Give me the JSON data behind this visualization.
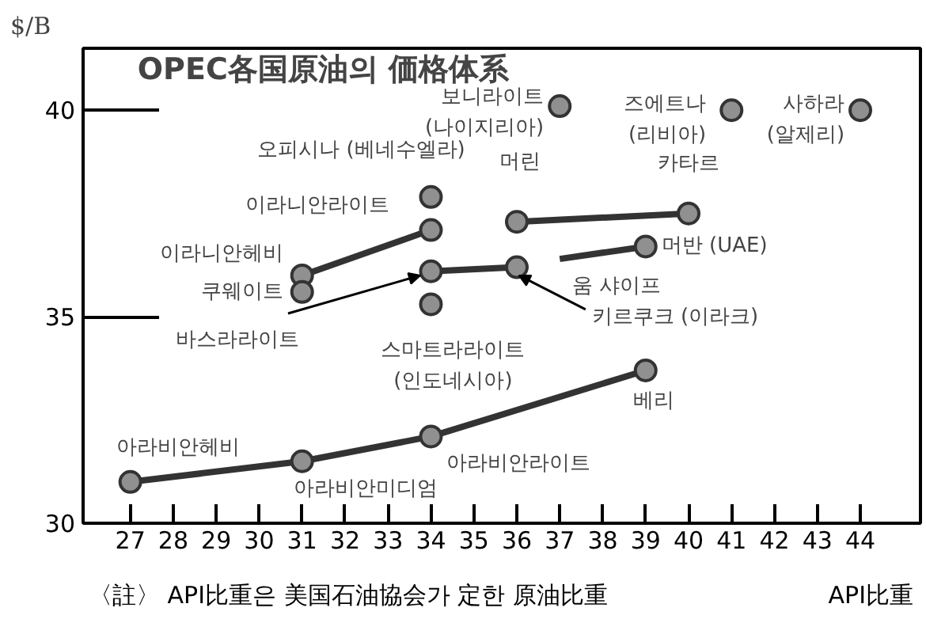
{
  "chart_data": {
    "type": "line",
    "title": "OPEC各国原油의 価格体系",
    "ylabel": "$/B",
    "xlabel": "API比重",
    "xlim": [
      25.9,
      45.4
    ],
    "ylim": [
      30,
      41.5
    ],
    "xticks": [
      27,
      28,
      29,
      30,
      31,
      32,
      33,
      34,
      35,
      36,
      37,
      38,
      39,
      40,
      41,
      42,
      43,
      44
    ],
    "yticks": [
      30,
      35,
      40
    ],
    "grid": false,
    "marker": "circle",
    "line_style": "solid",
    "series": [
      {
        "color": "#333333",
        "x": [
          27,
          31,
          34,
          39
        ],
        "values": [
          31.0,
          31.5,
          32.1,
          33.7
        ]
      },
      {
        "color": "#333333",
        "x": [
          31,
          34
        ],
        "values": [
          36.0,
          37.1
        ]
      },
      {
        "type": "scatter",
        "color": "#333333",
        "x": [
          31
        ],
        "values": [
          35.6
        ]
      },
      {
        "type": "scatter",
        "color": "#333333",
        "x": [
          34
        ],
        "values": [
          37.9
        ]
      },
      {
        "color": "#333333",
        "x": [
          34,
          36
        ],
        "values": [
          36.1,
          36.2
        ]
      },
      {
        "type": "scatter",
        "color": "#333333",
        "x": [
          34
        ],
        "values": [
          35.3
        ]
      },
      {
        "type": "scatter",
        "color": "#333333",
        "x": [
          37
        ],
        "values": [
          40.1
        ]
      },
      {
        "type": "scatter",
        "color": "#333333",
        "x": [
          41
        ],
        "values": [
          40.0
        ]
      },
      {
        "type": "scatter",
        "color": "#333333",
        "x": [
          44
        ],
        "values": [
          40.0
        ]
      },
      {
        "color": "#333333",
        "x": [
          36,
          40
        ],
        "values": [
          37.3,
          37.5
        ]
      },
      {
        "color": "#333333",
        "marker": "none",
        "x": [
          37,
          39
        ],
        "values": [
          36.4,
          36.7
        ]
      },
      {
        "type": "scatter",
        "color": "#333333",
        "x": [
          39
        ],
        "values": [
          36.7
        ]
      }
    ],
    "annotations": [
      {
        "text": "보니라이트\n(나이지리아)",
        "x": 37,
        "y": 40.1
      },
      {
        "text": "즈에트나\n(리비아)",
        "x": 41,
        "y": 40.0
      },
      {
        "text": "사하라\n(알제리)",
        "x": 44,
        "y": 40.0
      },
      {
        "text": "오피시나 (베네수엘라)",
        "x": 34,
        "y": 37.9
      },
      {
        "text": "머린",
        "x": 36,
        "y": 37.3
      },
      {
        "text": "카타르",
        "x": 40,
        "y": 37.5
      },
      {
        "text": "이라니안라이트",
        "x": 34,
        "y": 37.1
      },
      {
        "text": "이라니안헤비",
        "x": 31,
        "y": 36.0
      },
      {
        "text": "쿠웨이트",
        "x": 31,
        "y": 35.6
      },
      {
        "text": "바스라라이트",
        "x": 34,
        "y": 36.1
      },
      {
        "text": "스마트라라이트\n(인도네시아)",
        "x": 34,
        "y": 35.3
      },
      {
        "text": "움 샤이프",
        "x": 37,
        "y": 36.4
      },
      {
        "text": "키르쿠크 (이라크)",
        "x": 36,
        "y": 36.2
      },
      {
        "text": "머반 (UAE)",
        "x": 39,
        "y": 36.7
      },
      {
        "text": "베리",
        "x": 39,
        "y": 33.7
      },
      {
        "text": "아라비안라이트",
        "x": 34,
        "y": 32.1
      },
      {
        "text": "아라비안미디엄",
        "x": 31,
        "y": 31.5
      },
      {
        "text": "아라비안헤비",
        "x": 27,
        "y": 31.0
      },
      "〈註〉 API比重은 美国石油協会가 定한 原油比重"
    ]
  }
}
